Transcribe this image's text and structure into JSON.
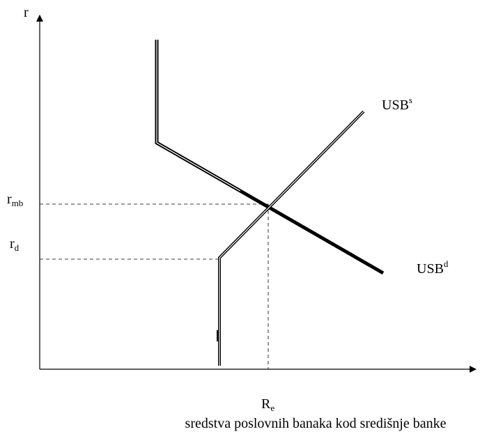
{
  "y_axis_label": "r",
  "rates": [
    {
      "base": "r",
      "sub": "mb"
    },
    {
      "base": "r",
      "sub": "d"
    }
  ],
  "curves": [
    {
      "base": "USB",
      "sup": "s"
    },
    {
      "base": "USB",
      "sup": "d"
    }
  ],
  "x_point": {
    "base": "R",
    "sub": "e"
  },
  "x_axis_label": "sredstva poslovnih banaka kod središnje banke"
}
